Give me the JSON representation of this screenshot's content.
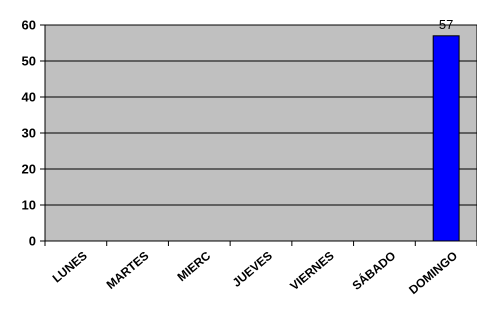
{
  "chart_data": {
    "type": "bar",
    "title": "",
    "xlabel": "",
    "ylabel": "",
    "categories": [
      "LUNES",
      "MARTES",
      "MIERC",
      "JUEVES",
      "VIERNES",
      "SÁBADO",
      "DOMINGO"
    ],
    "values": [
      0,
      0,
      0,
      0,
      0,
      0,
      57
    ],
    "data_labels": [
      "",
      "",
      "",
      "",
      "",
      "",
      "57"
    ],
    "ylim": [
      0,
      60
    ],
    "yticks": [
      0,
      10,
      20,
      30,
      40,
      50,
      60
    ],
    "grid": true,
    "legend": "none",
    "colors": {
      "bar": "#0000ff",
      "bar_outline": "#000000",
      "plot_background": "#c0c0c0",
      "gridline": "#000000"
    }
  }
}
